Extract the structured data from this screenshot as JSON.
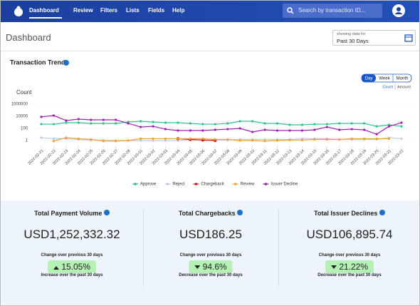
{
  "nav": {
    "items": [
      "Dashboard",
      "Review",
      "Filters",
      "Lists",
      "Fields",
      "Help"
    ],
    "search_placeholder": "Search by transaction ID..."
  },
  "header": {
    "title": "Dashboard",
    "date_filter": {
      "label": "showing data for",
      "value": "Past 30 Days"
    }
  },
  "card": {
    "title": "Transaction Trend",
    "ranges": [
      "Day",
      "Week",
      "Month"
    ],
    "metrics": [
      "Count",
      "Amount"
    ]
  },
  "chart_data": {
    "type": "line",
    "y_label": "Count",
    "log_scale": true,
    "x": [
      "2022-02-21",
      "2022-02-22",
      "2022-02-23",
      "2022-02-24",
      "2022-02-25",
      "2022-02-26",
      "2022-02-27",
      "2022-02-28",
      "2022-03-01",
      "2022-03-02",
      "2022-03-03",
      "2022-03-04",
      "2022-03-05",
      "2022-03-06",
      "2022-03-07",
      "2022-03-08",
      "2022-03-09",
      "2022-03-10",
      "2022-03-11",
      "2022-03-12",
      "2022-03-13",
      "2022-03-14",
      "2022-03-15",
      "2022-03-16",
      "2022-03-17",
      "2022-03-18",
      "2022-03-19",
      "2022-03-20",
      "2022-03-21",
      "2022-03-22"
    ],
    "ylim": [
      0.1,
      1000000
    ],
    "yticks": [
      1,
      100,
      10000,
      1000000
    ],
    "series": [
      {
        "name": "Approve",
        "color": "#2bc48a",
        "values": [
          500,
          500,
          870,
          870,
          670,
          670,
          670,
          1150,
          1500,
          1150,
          870,
          870,
          670,
          500,
          500,
          670,
          1500,
          1500,
          670,
          670,
          390,
          390,
          500,
          500,
          670,
          670,
          670,
          220,
          390,
          220
        ]
      },
      {
        "name": "Reject",
        "color": "#c3c8e6",
        "values": [
          3,
          2,
          2,
          1.5,
          1.2,
          1.2,
          1,
          1,
          1,
          1,
          1,
          1,
          1.2,
          1.2,
          1.2,
          1.2,
          1.5,
          1.5,
          1.5,
          1.5,
          1.5,
          2,
          2,
          2,
          1.5,
          1.5,
          1.5,
          1.5,
          3,
          2
        ]
      },
      {
        "name": "Chargeback",
        "color": "#d0151b",
        "values": [
          null,
          null,
          null,
          null,
          null,
          null,
          null,
          null,
          null,
          null,
          null,
          2,
          1.5,
          1.2,
          1,
          null,
          null,
          null,
          null,
          null,
          null,
          null,
          null,
          null,
          null,
          null,
          null,
          null,
          null,
          null
        ]
      },
      {
        "name": "Review",
        "color": "#f0a030",
        "values": [
          null,
          0.8,
          3,
          2,
          1.5,
          0.8,
          0.8,
          1,
          2,
          2,
          2,
          2,
          2,
          2,
          1.5,
          1.5,
          1,
          1,
          0.8,
          1,
          1.2,
          1.2,
          1.5,
          1.5,
          1.5,
          2,
          2,
          2,
          2,
          null
        ]
      },
      {
        "name": "Issuer Decline",
        "color": "#a020b0",
        "values": [
          8000,
          13000,
          2000,
          3400,
          2600,
          2600,
          2600,
          670,
          170,
          220,
          75,
          44,
          44,
          44,
          58,
          75,
          100,
          26,
          58,
          44,
          44,
          44,
          58,
          170,
          58,
          75,
          58,
          11,
          220,
          870
        ]
      }
    ]
  },
  "kpis": [
    {
      "title": "Total Payment Volume",
      "value": "USD1,252,332.32",
      "change_label": "Change over previous 30 days",
      "change": "15.05%",
      "note": "Increase over the past 30 days"
    },
    {
      "title": "Total Chargebacks",
      "value": "USD186.25",
      "change_label": "Change over previous 30 days",
      "change": "94.6%",
      "note": "Decrease over the past 30 days"
    },
    {
      "title": "Total Issuer Declines",
      "value": "USD106,895.74",
      "change_label": "Change over previous 30 days",
      "change": "21.22%",
      "note": "Decrease over the past 30 days"
    }
  ]
}
